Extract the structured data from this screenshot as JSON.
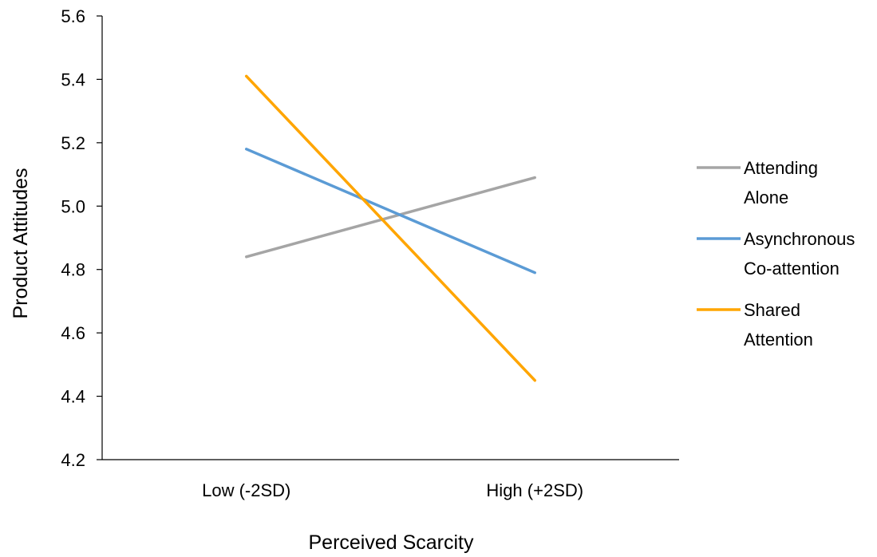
{
  "chart_data": {
    "type": "line",
    "title": "",
    "xlabel": "Perceived Scarcity",
    "ylabel": "Product Attitudes",
    "categories": [
      "Low (-2SD)",
      "High (+2SD)"
    ],
    "ylim": [
      4.2,
      5.6
    ],
    "yticks": [
      "4.2",
      "4.4",
      "4.6",
      "4.8",
      "5.0",
      "5.2",
      "5.4",
      "5.6"
    ],
    "grid": false,
    "legend_position": "right",
    "series": [
      {
        "name": "Attending Alone",
        "legend_lines": [
          "Attending",
          "Alone"
        ],
        "color": "#a5a5a5",
        "values": [
          4.84,
          5.09
        ]
      },
      {
        "name": "Asynchronous Co-attention",
        "legend_lines": [
          "Asynchronous",
          "Co-attention"
        ],
        "color": "#5b9bd5",
        "values": [
          5.18,
          4.79
        ]
      },
      {
        "name": "Shared Attention",
        "legend_lines": [
          "Shared",
          "Attention"
        ],
        "color": "#ffa500",
        "values": [
          5.41,
          4.45
        ]
      }
    ]
  }
}
